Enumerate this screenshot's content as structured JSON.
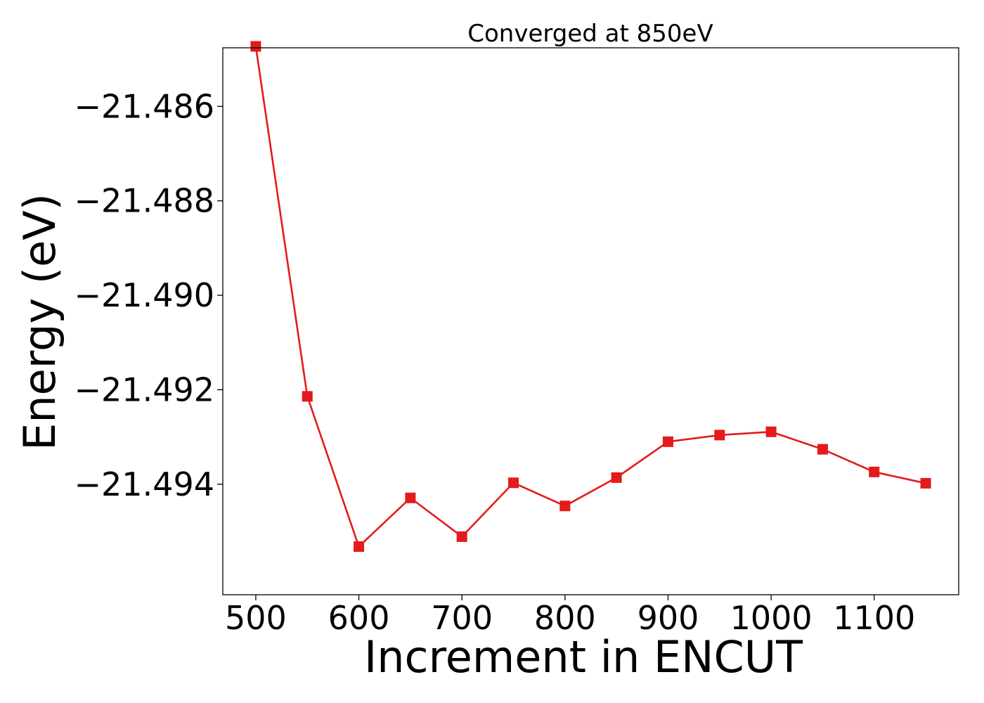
{
  "chart_data": {
    "type": "line",
    "title": "Converged at 850eV",
    "xlabel": "Increment in ENCUT",
    "ylabel": "Energy (eV)",
    "x_ticks": [
      500,
      600,
      700,
      800,
      900,
      1000,
      1100
    ],
    "y_ticks": [
      -21.486,
      -21.488,
      -21.49,
      -21.492,
      -21.494
    ],
    "y_tick_labels": [
      "−21.486",
      "−21.488",
      "−21.490",
      "−21.492",
      "−21.494"
    ],
    "xlim": [
      468,
      1182
    ],
    "ylim": [
      -21.49634,
      -21.48476
    ],
    "grid": false,
    "legend": "none",
    "series": [
      {
        "color": "#e41a1c",
        "marker": "square",
        "x": [
          500,
          550,
          600,
          650,
          700,
          750,
          800,
          850,
          900,
          950,
          1000,
          1050,
          1100,
          1150
        ],
        "y": [
          -21.48473,
          -21.49214,
          -21.49532,
          -21.49429,
          -21.49511,
          -21.49397,
          -21.49446,
          -21.49386,
          -21.4931,
          -21.49296,
          -21.49289,
          -21.49326,
          -21.49374,
          -21.49398
        ]
      }
    ]
  }
}
